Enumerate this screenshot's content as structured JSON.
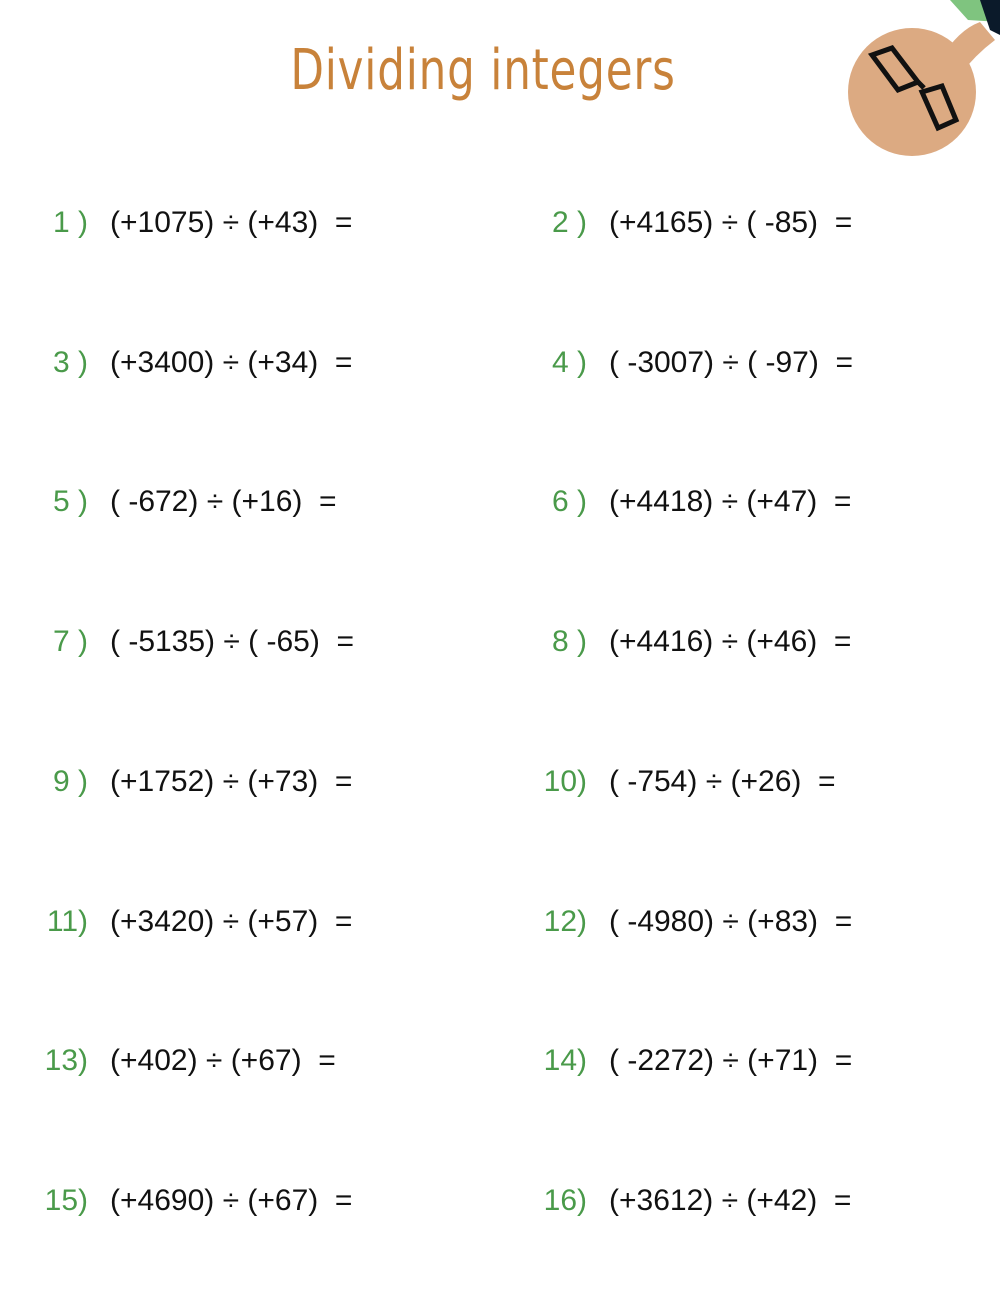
{
  "title": "Dividing integers",
  "colors": {
    "title": "#c8823a",
    "number": "#4a9a4a",
    "text": "#111111"
  },
  "illustration": "character-with-glasses",
  "problems": [
    {
      "number": "1 )",
      "expression": "(+1075) ÷ (+43)  ="
    },
    {
      "number": "2 )",
      "expression": "(+4165) ÷ ( -85)  ="
    },
    {
      "number": "3 )",
      "expression": "(+3400) ÷ (+34)  ="
    },
    {
      "number": "4 )",
      "expression": "( -3007) ÷ ( -97)  ="
    },
    {
      "number": "5 )",
      "expression": "( -672) ÷ (+16)  ="
    },
    {
      "number": "6 )",
      "expression": "(+4418) ÷ (+47)  ="
    },
    {
      "number": "7 )",
      "expression": "( -5135) ÷ ( -65)  ="
    },
    {
      "number": "8 )",
      "expression": "(+4416) ÷ (+46)  ="
    },
    {
      "number": "9 )",
      "expression": "(+1752) ÷ (+73)  ="
    },
    {
      "number": "10)",
      "expression": "( -754) ÷ (+26)  ="
    },
    {
      "number": "11)",
      "expression": "(+3420) ÷ (+57)  ="
    },
    {
      "number": "12)",
      "expression": "( -4980) ÷ (+83)  ="
    },
    {
      "number": "13)",
      "expression": "(+402) ÷ (+67)  ="
    },
    {
      "number": "14)",
      "expression": "( -2272) ÷ (+71)  ="
    },
    {
      "number": "15)",
      "expression": "(+4690) ÷ (+67)  ="
    },
    {
      "number": "16)",
      "expression": "(+3612) ÷ (+42)  ="
    }
  ]
}
